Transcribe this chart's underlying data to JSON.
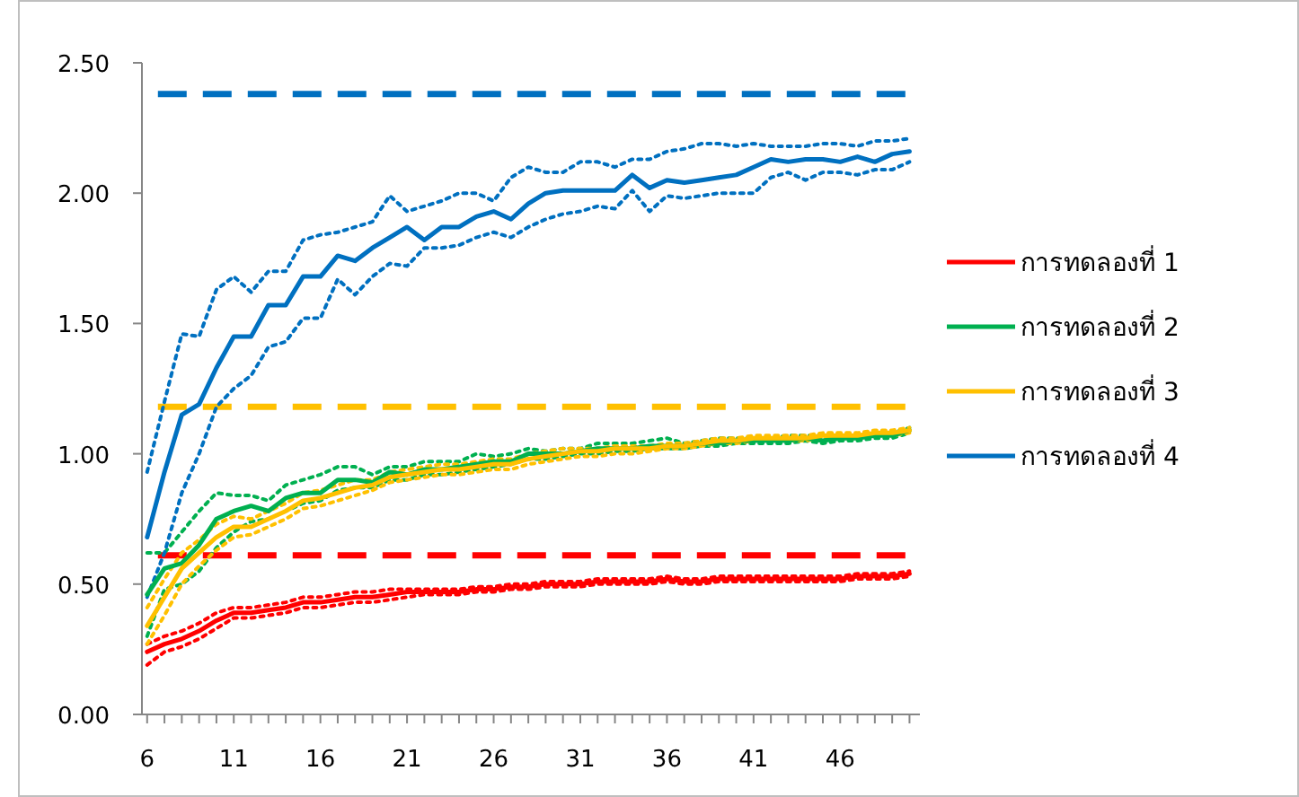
{
  "chart_data": {
    "type": "line",
    "legend": "right",
    "grid": false,
    "marker": "none",
    "line_style": "solid",
    "xlim": [
      5.7,
      50.6
    ],
    "ylim": [
      0,
      2.5
    ],
    "yticks": [
      {
        "value": 0,
        "label": "0.00"
      },
      {
        "value": 0.5,
        "label": "0.50"
      },
      {
        "value": 1,
        "label": "1.00"
      },
      {
        "value": 1.5,
        "label": "1.50"
      },
      {
        "value": 2,
        "label": "2.00"
      },
      {
        "value": 2.5,
        "label": "2.50"
      }
    ],
    "xticks": [
      6,
      {
        "value": 7,
        "label": null
      },
      {
        "value": 8,
        "label": null
      },
      {
        "value": 9,
        "label": null
      },
      {
        "value": 10,
        "label": null
      },
      11,
      {
        "value": 12,
        "label": null
      },
      {
        "value": 13,
        "label": null
      },
      {
        "value": 14,
        "label": null
      },
      {
        "value": 15,
        "label": null
      },
      16,
      {
        "value": 17,
        "label": null
      },
      {
        "value": 18,
        "label": null
      },
      {
        "value": 19,
        "label": null
      },
      {
        "value": 20,
        "label": null
      },
      21,
      {
        "value": 22,
        "label": null
      },
      {
        "value": 23,
        "label": null
      },
      {
        "value": 24,
        "label": null
      },
      {
        "value": 25,
        "label": null
      },
      26,
      {
        "value": 27,
        "label": null
      },
      {
        "value": 28,
        "label": null
      },
      {
        "value": 29,
        "label": null
      },
      {
        "value": 30,
        "label": null
      },
      31,
      {
        "value": 32,
        "label": null
      },
      {
        "value": 33,
        "label": null
      },
      {
        "value": 34,
        "label": null
      },
      {
        "value": 35,
        "label": null
      },
      36,
      {
        "value": 37,
        "label": null
      },
      {
        "value": 38,
        "label": null
      },
      {
        "value": 39,
        "label": null
      },
      {
        "value": 40,
        "label": null
      },
      41,
      {
        "value": 42,
        "label": null
      },
      {
        "value": 43,
        "label": null
      },
      {
        "value": 44,
        "label": null
      },
      {
        "value": 45,
        "label": null
      },
      46,
      {
        "value": 47,
        "label": null
      },
      {
        "value": 48,
        "label": null
      },
      {
        "value": 49,
        "label": null
      },
      {
        "value": 50,
        "label": null
      }
    ],
    "x": [
      6,
      7,
      8,
      9,
      10,
      11,
      12,
      13,
      14,
      15,
      16,
      17,
      18,
      19,
      20,
      21,
      22,
      23,
      24,
      25,
      26,
      27,
      28,
      29,
      30,
      31,
      32,
      33,
      34,
      35,
      36,
      37,
      38,
      39,
      40,
      41,
      42,
      43,
      44,
      45,
      46,
      47,
      48,
      49,
      50
    ],
    "series": [
      {
        "color": "#ff0000",
        "line_style": "dotted",
        "values": [
          0.19,
          0.24,
          0.26,
          0.29,
          0.33,
          0.37,
          0.37,
          0.38,
          0.39,
          0.41,
          0.41,
          0.42,
          0.43,
          0.43,
          0.44,
          0.45,
          0.46,
          0.46,
          0.46,
          0.47,
          0.47,
          0.48,
          0.48,
          0.49,
          0.49,
          0.49,
          0.5,
          0.5,
          0.5,
          0.5,
          0.51,
          0.5,
          0.5,
          0.51,
          0.51,
          0.51,
          0.51,
          0.51,
          0.51,
          0.51,
          0.51,
          0.52,
          0.52,
          0.52,
          0.53
        ]
      },
      {
        "color": "#ff0000",
        "line_style": "dotted",
        "values": [
          0.27,
          0.3,
          0.32,
          0.35,
          0.39,
          0.41,
          0.41,
          0.42,
          0.43,
          0.45,
          0.45,
          0.46,
          0.47,
          0.47,
          0.48,
          0.48,
          0.48,
          0.48,
          0.48,
          0.49,
          0.49,
          0.5,
          0.5,
          0.51,
          0.51,
          0.51,
          0.52,
          0.52,
          0.52,
          0.52,
          0.53,
          0.52,
          0.52,
          0.53,
          0.53,
          0.53,
          0.53,
          0.53,
          0.53,
          0.53,
          0.53,
          0.54,
          0.54,
          0.54,
          0.55
        ]
      },
      {
        "color": "#00b050",
        "line_style": "dotted",
        "values": [
          0.3,
          0.48,
          0.5,
          0.55,
          0.64,
          0.7,
          0.74,
          0.75,
          0.78,
          0.81,
          0.82,
          0.86,
          0.87,
          0.87,
          0.9,
          0.9,
          0.92,
          0.92,
          0.93,
          0.94,
          0.95,
          0.96,
          0.98,
          0.98,
          0.99,
          1.0,
          1.0,
          1.01,
          1.01,
          1.02,
          1.02,
          1.02,
          1.03,
          1.03,
          1.04,
          1.04,
          1.04,
          1.04,
          1.05,
          1.04,
          1.05,
          1.05,
          1.06,
          1.06,
          1.08
        ]
      },
      {
        "color": "#00b050",
        "line_style": "dotted",
        "values": [
          0.62,
          0.62,
          0.7,
          0.78,
          0.85,
          0.84,
          0.84,
          0.82,
          0.88,
          0.9,
          0.92,
          0.95,
          0.95,
          0.92,
          0.95,
          0.95,
          0.97,
          0.97,
          0.97,
          1.0,
          0.99,
          1.0,
          1.02,
          1.01,
          1.02,
          1.02,
          1.04,
          1.04,
          1.04,
          1.05,
          1.06,
          1.04,
          1.05,
          1.06,
          1.06,
          1.06,
          1.06,
          1.07,
          1.07,
          1.07,
          1.07,
          1.07,
          1.08,
          1.08,
          1.1
        ]
      },
      {
        "color": "#ffc000",
        "line_style": "dotted",
        "values": [
          0.27,
          0.38,
          0.5,
          0.57,
          0.63,
          0.68,
          0.69,
          0.72,
          0.75,
          0.79,
          0.8,
          0.82,
          0.84,
          0.86,
          0.89,
          0.9,
          0.91,
          0.92,
          0.92,
          0.93,
          0.94,
          0.94,
          0.96,
          0.97,
          0.98,
          0.99,
          0.99,
          1.0,
          1.0,
          1.01,
          1.02,
          1.02,
          1.03,
          1.04,
          1.04,
          1.05,
          1.05,
          1.05,
          1.05,
          1.06,
          1.06,
          1.06,
          1.07,
          1.07,
          1.08
        ]
      },
      {
        "color": "#ffc000",
        "line_style": "dotted",
        "values": [
          0.41,
          0.52,
          0.62,
          0.67,
          0.73,
          0.76,
          0.75,
          0.78,
          0.81,
          0.85,
          0.86,
          0.88,
          0.9,
          0.9,
          0.93,
          0.94,
          0.95,
          0.96,
          0.96,
          0.97,
          0.98,
          0.98,
          1.0,
          1.01,
          1.02,
          1.02,
          1.02,
          1.03,
          1.03,
          1.03,
          1.04,
          1.04,
          1.05,
          1.06,
          1.06,
          1.07,
          1.07,
          1.07,
          1.07,
          1.08,
          1.08,
          1.08,
          1.09,
          1.09,
          1.1
        ]
      },
      {
        "color": "#0070c0",
        "line_style": "dotted",
        "values": [
          0.45,
          0.62,
          0.85,
          1.0,
          1.18,
          1.25,
          1.3,
          1.41,
          1.43,
          1.52,
          1.52,
          1.67,
          1.61,
          1.68,
          1.73,
          1.72,
          1.79,
          1.79,
          1.8,
          1.83,
          1.85,
          1.83,
          1.87,
          1.9,
          1.92,
          1.93,
          1.95,
          1.94,
          2.01,
          1.93,
          1.99,
          1.98,
          1.99,
          2.0,
          2.0,
          2.0,
          2.06,
          2.08,
          2.05,
          2.08,
          2.08,
          2.07,
          2.09,
          2.09,
          2.12
        ]
      },
      {
        "color": "#0070c0",
        "line_style": "dotted",
        "values": [
          0.93,
          1.2,
          1.46,
          1.45,
          1.63,
          1.68,
          1.62,
          1.7,
          1.7,
          1.82,
          1.84,
          1.85,
          1.87,
          1.89,
          1.99,
          1.93,
          1.95,
          1.97,
          2.0,
          2.0,
          1.97,
          2.06,
          2.1,
          2.08,
          2.08,
          2.12,
          2.12,
          2.1,
          2.13,
          2.13,
          2.16,
          2.17,
          2.19,
          2.19,
          2.18,
          2.19,
          2.18,
          2.18,
          2.18,
          2.19,
          2.19,
          2.18,
          2.2,
          2.2,
          2.21
        ]
      },
      {
        "name": "การทดลองที่ 1",
        "color": "#ff0000",
        "values": [
          0.24,
          0.27,
          0.29,
          0.32,
          0.36,
          0.39,
          0.39,
          0.4,
          0.41,
          0.43,
          0.43,
          0.44,
          0.45,
          0.45,
          0.46,
          0.47,
          0.47,
          0.47,
          0.47,
          0.48,
          0.48,
          0.49,
          0.49,
          0.5,
          0.5,
          0.5,
          0.51,
          0.51,
          0.51,
          0.51,
          0.52,
          0.51,
          0.51,
          0.52,
          0.52,
          0.52,
          0.52,
          0.52,
          0.52,
          0.52,
          0.52,
          0.53,
          0.53,
          0.53,
          0.54
        ]
      },
      {
        "name": "การทดลองที่ 2",
        "color": "#00b050",
        "values": [
          0.46,
          0.56,
          0.58,
          0.65,
          0.75,
          0.78,
          0.8,
          0.78,
          0.83,
          0.85,
          0.85,
          0.9,
          0.9,
          0.89,
          0.93,
          0.92,
          0.94,
          0.94,
          0.95,
          0.96,
          0.97,
          0.97,
          1.0,
          1.0,
          1.0,
          1.01,
          1.02,
          1.02,
          1.02,
          1.03,
          1.03,
          1.03,
          1.04,
          1.04,
          1.05,
          1.05,
          1.05,
          1.05,
          1.06,
          1.05,
          1.06,
          1.06,
          1.07,
          1.07,
          1.09
        ]
      },
      {
        "name": "การทดลองที่ 3",
        "color": "#ffc000",
        "values": [
          0.34,
          0.45,
          0.56,
          0.62,
          0.68,
          0.72,
          0.72,
          0.75,
          0.78,
          0.82,
          0.83,
          0.85,
          0.87,
          0.88,
          0.91,
          0.92,
          0.93,
          0.94,
          0.94,
          0.95,
          0.96,
          0.96,
          0.98,
          0.99,
          1.0,
          1.01,
          1.01,
          1.02,
          1.02,
          1.02,
          1.03,
          1.03,
          1.04,
          1.05,
          1.05,
          1.06,
          1.06,
          1.06,
          1.06,
          1.07,
          1.07,
          1.07,
          1.08,
          1.08,
          1.09
        ]
      },
      {
        "name": "การทดลองที่ 4",
        "color": "#0070c0",
        "values": [
          0.68,
          0.93,
          1.15,
          1.19,
          1.33,
          1.45,
          1.45,
          1.57,
          1.57,
          1.68,
          1.68,
          1.76,
          1.74,
          1.79,
          1.83,
          1.87,
          1.82,
          1.87,
          1.87,
          1.91,
          1.93,
          1.9,
          1.96,
          2.0,
          2.01,
          2.01,
          2.01,
          2.01,
          2.07,
          2.02,
          2.05,
          2.04,
          2.05,
          2.06,
          2.07,
          2.1,
          2.13,
          2.12,
          2.13,
          2.13,
          2.12,
          2.14,
          2.12,
          2.15,
          2.16
        ]
      }
    ],
    "ref_lines": [
      {
        "axis": "y",
        "value": 2.38,
        "color": "#0070c0",
        "line_style": "dashed"
      },
      {
        "axis": "y",
        "value": 1.18,
        "color": "#ffc000",
        "line_style": "dashed"
      },
      {
        "axis": "y",
        "value": 0.61,
        "color": "#ff0000",
        "line_style": "dashed"
      }
    ]
  }
}
